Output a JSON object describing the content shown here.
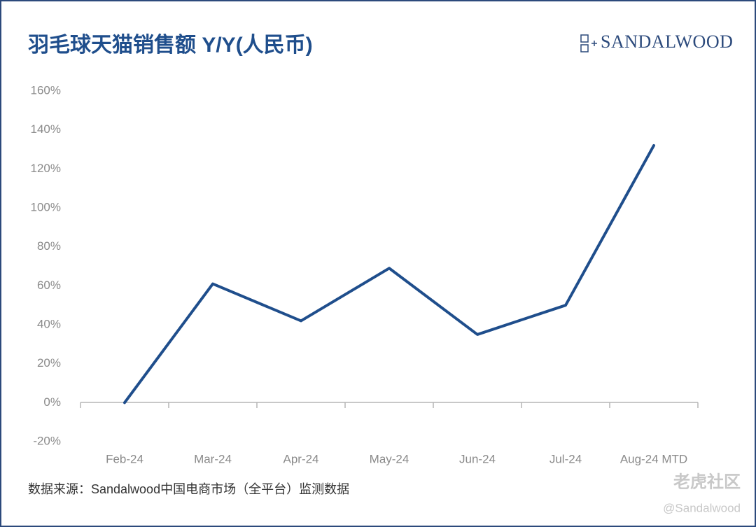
{
  "chart_data": {
    "type": "line",
    "title": "羽毛球天猫销售额 Y/Y(人民币)",
    "categories": [
      "Feb-24",
      "Mar-24",
      "Apr-24",
      "May-24",
      "Jun-24",
      "Jul-24",
      "Aug-24 MTD"
    ],
    "values": [
      0,
      61,
      42,
      69,
      35,
      50,
      132
    ],
    "color": "#1f4e8c",
    "ylim": [
      -20,
      160
    ],
    "yticks": [
      {
        "value": -20,
        "label": "-20%"
      },
      {
        "value": 0,
        "label": "0%"
      },
      {
        "value": 20,
        "label": "20%"
      },
      {
        "value": 40,
        "label": "40%"
      },
      {
        "value": 60,
        "label": "60%"
      },
      {
        "value": 80,
        "label": "80%"
      },
      {
        "value": 100,
        "label": "100%"
      },
      {
        "value": 120,
        "label": "120%"
      },
      {
        "value": 140,
        "label": "140%"
      },
      {
        "value": 160,
        "label": "160%"
      }
    ],
    "grid": false,
    "source": "数据来源：Sandalwood中国电商市场（全平台）监测数据"
  },
  "logo": "SANDALWOOD",
  "watermark": {
    "brand": "老虎社区",
    "handle": "@Sandalwood"
  }
}
